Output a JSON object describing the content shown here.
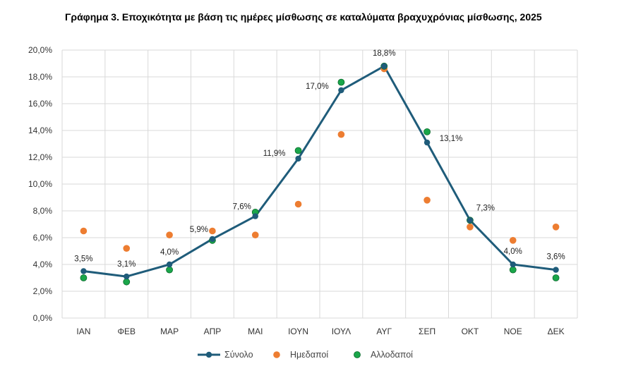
{
  "chart_data": {
    "type": "line",
    "title": "Γράφημα 3. Εποχικότητα με βάση τις ημέρες μίσθωσης σε καταλύματα βραχυχρόνιας μίσθωσης, 2025",
    "categories": [
      "ΙΑΝ",
      "ΦΕΒ",
      "ΜΑΡ",
      "ΑΠΡ",
      "ΜΑΙ",
      "ΙΟΥΝ",
      "ΙΟΥΛ",
      "ΑΥΓ",
      "ΣΕΠ",
      "ΟΚΤ",
      "ΝΟΕ",
      "ΔΕΚ"
    ],
    "ylim": [
      0,
      20
    ],
    "yticks": [
      "0,0%",
      "2,0%",
      "4,0%",
      "6,0%",
      "8,0%",
      "10,0%",
      "12,0%",
      "14,0%",
      "16,0%",
      "18,0%",
      "20,0%"
    ],
    "grid": true,
    "legend_position": "bottom",
    "series": [
      {
        "name": "Σύνολο",
        "kind": "line",
        "color": "#1f5c7a",
        "values": [
          3.5,
          3.1,
          4.0,
          5.9,
          7.6,
          11.9,
          17.0,
          18.8,
          13.1,
          7.3,
          4.0,
          3.6
        ],
        "labels": [
          "3,5%",
          "3,1%",
          "4,0%",
          "5,9%",
          "7,6%",
          "11,9%",
          "17,0%",
          "18,8%",
          "13,1%",
          "7,3%",
          "4,0%",
          "3,6%"
        ]
      },
      {
        "name": "Ημεδαποί",
        "kind": "scatter",
        "color": "#ed7d31",
        "values": [
          6.5,
          5.2,
          6.2,
          6.5,
          6.2,
          8.5,
          13.7,
          18.6,
          8.8,
          6.8,
          5.8,
          6.8
        ]
      },
      {
        "name": "Αλλοδαποί",
        "kind": "scatter",
        "color": "#1aa64a",
        "values": [
          3.0,
          2.7,
          3.6,
          5.8,
          7.9,
          12.5,
          17.6,
          18.8,
          13.9,
          7.3,
          3.6,
          3.0
        ]
      }
    ]
  }
}
